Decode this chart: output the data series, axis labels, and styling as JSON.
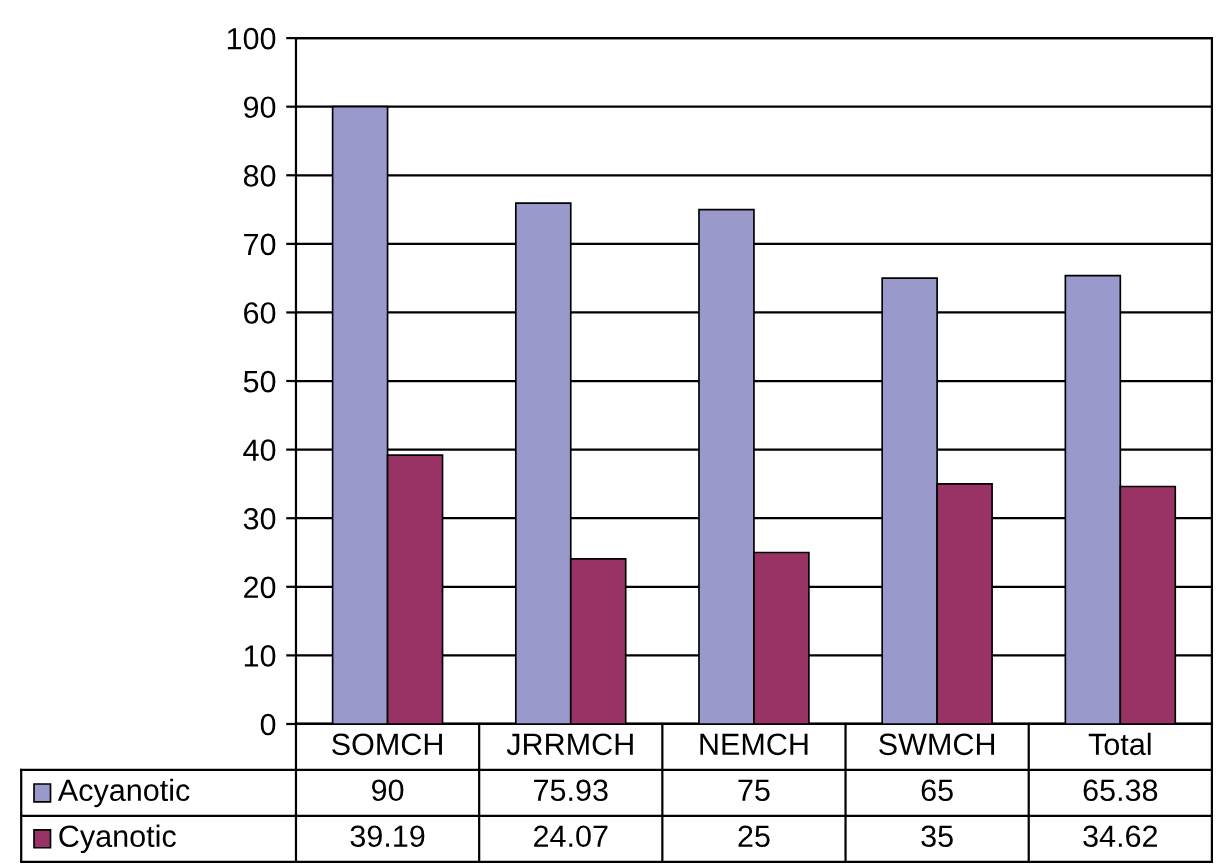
{
  "chart_data": {
    "type": "bar",
    "categories": [
      "SOMCH",
      "JRRMCH",
      "NEMCH",
      "SWMCH",
      "Total"
    ],
    "series": [
      {
        "name": "Acyanotic",
        "color": "#9999cc",
        "values": [
          90,
          75.93,
          75,
          65,
          65.38
        ]
      },
      {
        "name": "Cyanotic",
        "color": "#993366",
        "values": [
          39.19,
          24.07,
          25,
          35,
          34.62
        ]
      }
    ],
    "ylim": [
      0,
      100
    ],
    "yticks": [
      0,
      10,
      20,
      30,
      40,
      50,
      60,
      70,
      80,
      90,
      100
    ],
    "grid": "y",
    "data_labels": true,
    "legend": "bottom"
  }
}
